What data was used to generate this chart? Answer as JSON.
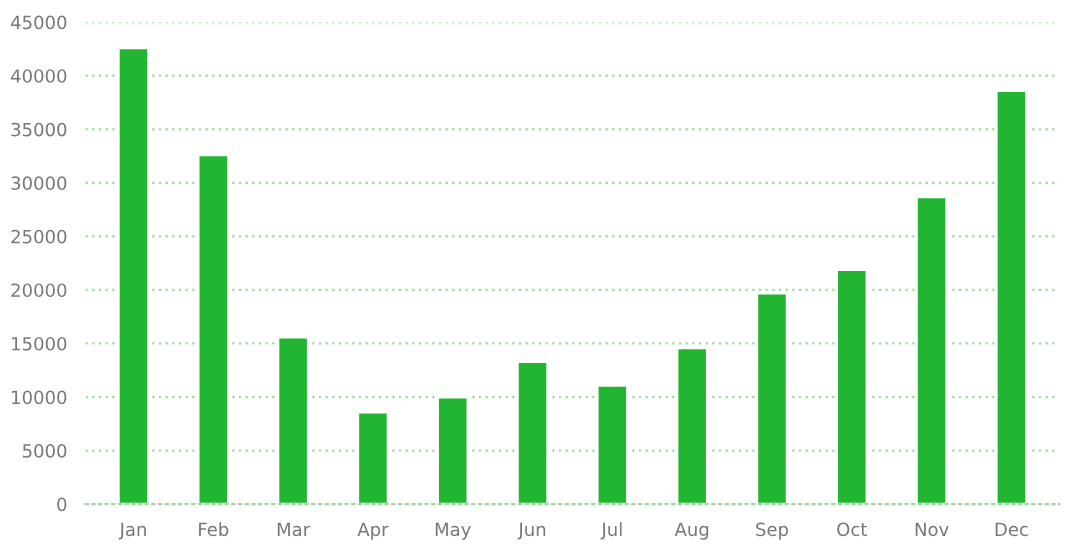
{
  "chart_data": {
    "type": "bar",
    "categories": [
      "Jan",
      "Feb",
      "Mar",
      "Apr",
      "May",
      "Jun",
      "Jul",
      "Aug",
      "Sep",
      "Oct",
      "Nov",
      "Dec"
    ],
    "values": [
      42600,
      32600,
      15600,
      8600,
      10000,
      13300,
      11100,
      14600,
      19700,
      21900,
      28700,
      38600
    ],
    "color": "#22b531",
    "ylim": [
      0,
      45000
    ],
    "yticks": [
      0,
      5000,
      10000,
      15000,
      20000,
      25000,
      30000,
      35000,
      40000,
      45000
    ],
    "grid": "y"
  }
}
